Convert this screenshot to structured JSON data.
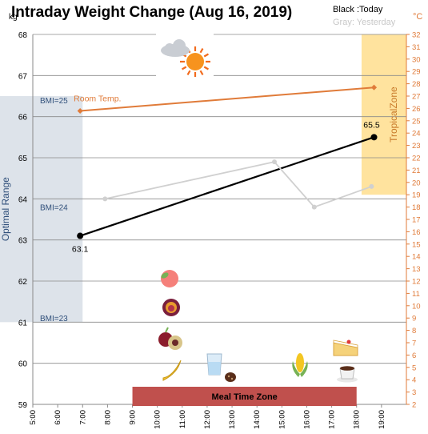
{
  "chart_data": {
    "type": "line",
    "title": "Intraday Weight Change (Aug 16, 2019)",
    "legend": {
      "today": "Black :Today",
      "yesterday": "Gray: Yesterday"
    },
    "y_left": {
      "unit": "kg",
      "min": 59,
      "max": 68,
      "ticks": [
        "59",
        "60",
        "61",
        "62",
        "63",
        "64",
        "65",
        "66",
        "67",
        "68"
      ]
    },
    "y_right": {
      "unit": "°C",
      "min": 2,
      "max": 32,
      "ticks": [
        "2",
        "3",
        "4",
        "5",
        "6",
        "7",
        "8",
        "9",
        "10",
        "11",
        "12",
        "13",
        "14",
        "15",
        "16",
        "17",
        "18",
        "19",
        "20",
        "21",
        "22",
        "23",
        "24",
        "25",
        "26",
        "27",
        "28",
        "29",
        "30",
        "31",
        "32"
      ]
    },
    "x_axis": {
      "min": 5,
      "max": 20,
      "ticks": [
        "5:00",
        "6:00",
        "7:00",
        "8:00",
        "9:00",
        "10:00",
        "11:00",
        "12:00",
        "13:00",
        "14:00",
        "15:00",
        "16:00",
        "17:00",
        "18:00",
        "19:00"
      ]
    },
    "series": [
      {
        "name": "Today",
        "color": "#000000",
        "points": [
          {
            "x": 6.9,
            "y": 63.1
          },
          {
            "x": 18.7,
            "y": 65.5
          }
        ],
        "data_labels": [
          "63.1",
          "65.5"
        ]
      },
      {
        "name": "Yesterday",
        "color": "#d0d0d0",
        "points": [
          {
            "x": 7.9,
            "y": 64.0
          },
          {
            "x": 14.7,
            "y": 64.9
          },
          {
            "x": 16.3,
            "y": 63.8
          },
          {
            "x": 18.6,
            "y": 64.3
          }
        ]
      },
      {
        "name": "Room Temp.",
        "color": "#e07b39",
        "axis": "right",
        "points": [
          {
            "x": 6.9,
            "y": 25.8
          },
          {
            "x": 18.7,
            "y": 27.7
          }
        ]
      }
    ],
    "annotations": {
      "optimal_range": {
        "label": "Optimal Range",
        "y_from": 61.0,
        "y_to": 66.5,
        "x_to": 7.0
      },
      "tropical_zone": {
        "label": "TropicalZone",
        "temp_from": 19.0,
        "temp_to": 32.0,
        "x_from": 18.2
      },
      "bmi_lines": [
        {
          "label": "BMI=25",
          "y": 66.4
        },
        {
          "label": "BMI=24",
          "y": 63.8
        },
        {
          "label": "BMI=23",
          "y": 61.1
        }
      ],
      "room_temp_label": "Room Temp.",
      "meal_time_zone": {
        "label": "Meal Time Zone",
        "x_from": 9.0,
        "x_to": 18.0
      }
    },
    "icons": [
      "cloud-sun-icon",
      "peach-icon",
      "fig-icon",
      "plum-icon",
      "banana-icon",
      "water-glass-icon",
      "chocolate-icon",
      "corn-icon",
      "cake-icon",
      "coffee-cup-icon"
    ],
    "grid": true
  }
}
